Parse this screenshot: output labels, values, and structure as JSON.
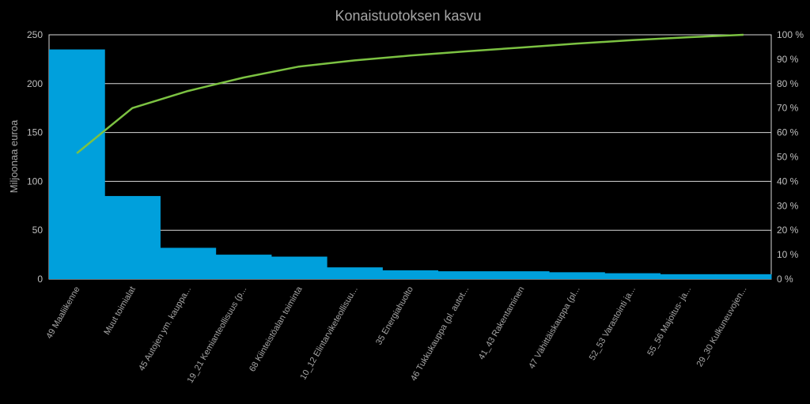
{
  "chart_data": {
    "type": "bar",
    "title": "Konaistuotoksen kasvu",
    "ylabel": "Miljoonaa euroa",
    "ylim": [
      0,
      250
    ],
    "y_ticks": [
      "0",
      "50",
      "100",
      "150",
      "200",
      "250"
    ],
    "y2lim": [
      0,
      100
    ],
    "y2_ticks": [
      "0 %",
      "10 %",
      "20 %",
      "30 %",
      "40 %",
      "50 %",
      "60 %",
      "70 %",
      "80 %",
      "90 %",
      "100 %"
    ],
    "grid": true,
    "legend": "none",
    "categories": [
      "49 Maaliikenne",
      "Muut toimialat",
      "45 Autojen ym. kauppa...",
      "19_21 Kemianteollisuus (p...",
      "68 Kiinteistöalan toiminta",
      "10_12 Elintarviketeollisuu...",
      "35 Energiahuolto",
      "46 Tukkukauppa (pl. autot...",
      "41_43 Rakentaminen",
      "47 Vähittäiskauppa (pl...",
      "52_53 Varastointi ja...",
      "55_56 Majoitus- ja...",
      "29_30 Kulkuneuvojen..."
    ],
    "series": [
      {
        "type": "bar",
        "color": "#00a0dc",
        "values": [
          235,
          85,
          32,
          25,
          23,
          12,
          9,
          8,
          8,
          7,
          6,
          5,
          5
        ]
      },
      {
        "type": "line",
        "axis": "right",
        "color": "#7cc242",
        "values": [
          51.5,
          70,
          77,
          82.5,
          87,
          89.5,
          91.5,
          93.2,
          94.8,
          96.4,
          97.8,
          99,
          100
        ]
      }
    ],
    "colors": {
      "background": "#000000",
      "grid": "#d9d9d9",
      "text": "#a6a6a6"
    }
  }
}
